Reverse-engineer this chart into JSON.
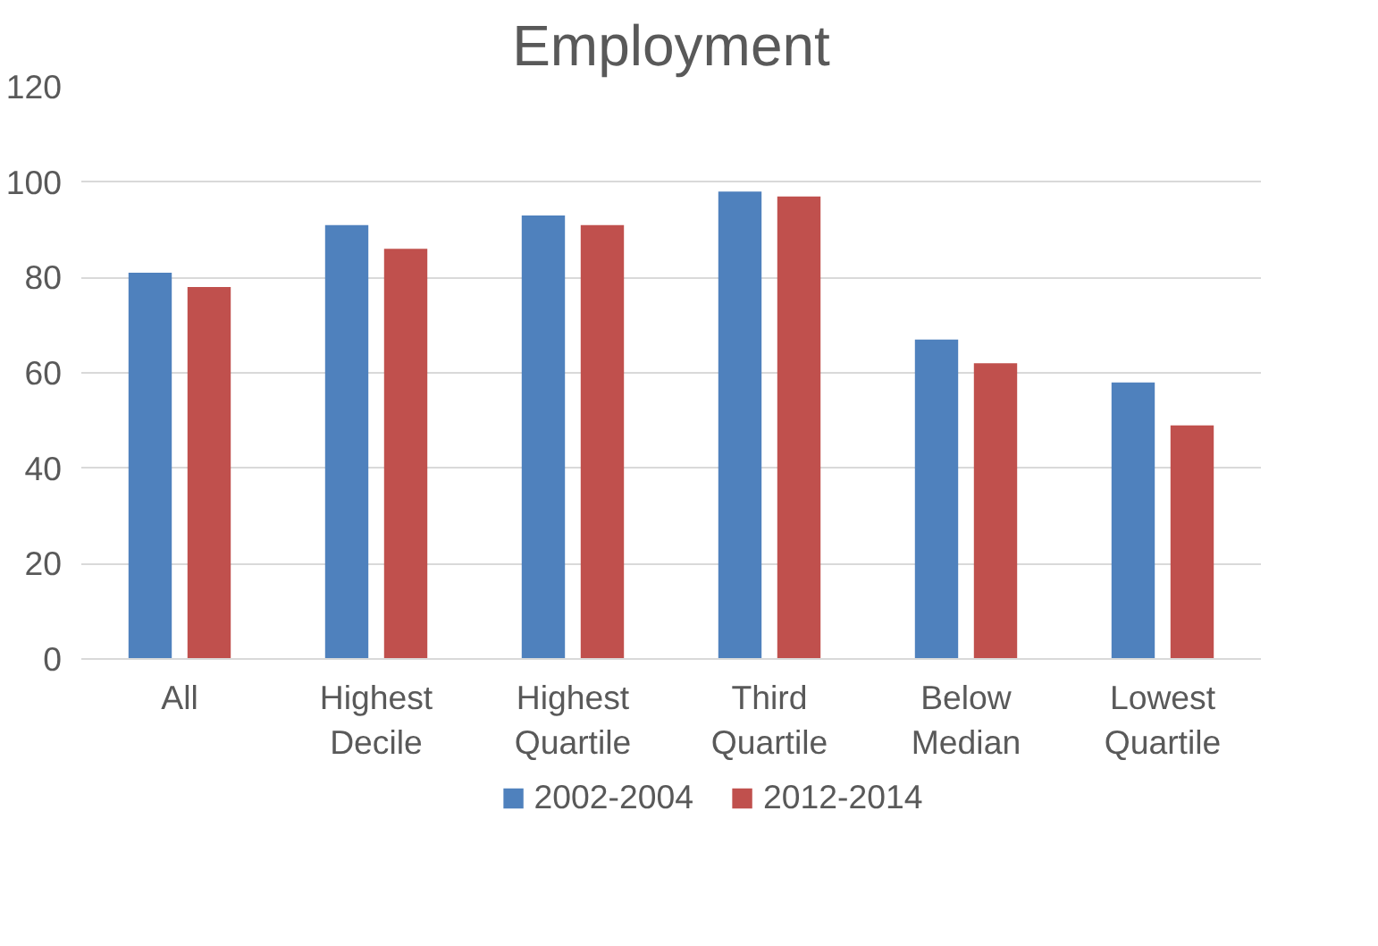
{
  "chart_data": {
    "type": "bar",
    "title": "Employment",
    "categories": [
      "All",
      "Highest Decile",
      "Highest Quartile",
      "Third Quartile",
      "Below Median",
      "Lowest Quartile"
    ],
    "series": [
      {
        "name": "2002-2004",
        "color": "#4f81bd",
        "values": [
          81,
          91,
          93,
          98,
          67,
          58
        ]
      },
      {
        "name": "2012-2014",
        "color": "#c0504d",
        "values": [
          78,
          86,
          91,
          97,
          62,
          49
        ]
      }
    ],
    "ylim": [
      0,
      120
    ],
    "yticks": [
      0,
      20,
      40,
      60,
      80,
      100,
      120
    ],
    "grid": "y",
    "legend": "bottom"
  }
}
